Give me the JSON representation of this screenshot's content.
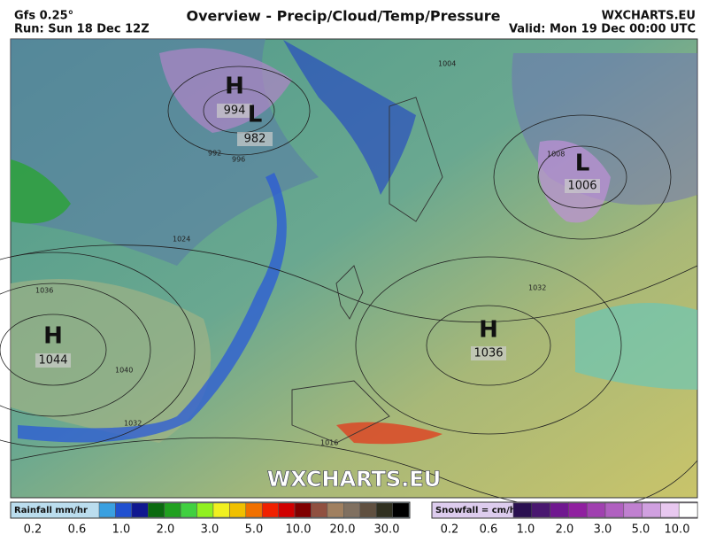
{
  "header": {
    "model": "Gfs 0.25°",
    "run": "Run: Sun 18 Dec 12Z",
    "title": "Overview - Precip/Cloud/Temp/Pressure",
    "site": "WXCHARTS.EU",
    "valid": "Valid: Mon 19 Dec 00:00 UTC"
  },
  "pressure_centers": [
    {
      "type": "H",
      "value": "994"
    },
    {
      "type": "L",
      "value": "982"
    },
    {
      "type": "L",
      "value": "1006"
    },
    {
      "type": "H",
      "value": "1044"
    },
    {
      "type": "H",
      "value": "1036"
    }
  ],
  "isobar_labels": [
    "1004",
    "1008",
    "992",
    "996",
    "1024",
    "1036",
    "1040",
    "1032",
    "1016",
    "1032"
  ],
  "watermark": "WXCHARTS.EU",
  "rain_legend": {
    "title": "Rainfall mm/hr",
    "labels": [
      "0.2",
      "0.6",
      "1.0",
      "2.0",
      "3.0",
      "5.0",
      "10.0",
      "20.0",
      "30.0"
    ],
    "colors": [
      "#3aa0e0",
      "#2050d0",
      "#101890",
      "#0a6a10",
      "#20a020",
      "#40d040",
      "#90f020",
      "#f0f020",
      "#f0c000",
      "#f07000",
      "#f02000",
      "#d00000",
      "#800000",
      "#905040",
      "#a08060",
      "#807060",
      "#605040",
      "#303020",
      "#000000"
    ]
  },
  "snow_legend": {
    "title": "Snowfall = cm/hr",
    "labels": [
      "0.2",
      "0.6",
      "1.0",
      "2.0",
      "3.0",
      "5.0",
      "10.0"
    ],
    "colors": [
      "#2a1050",
      "#4a1870",
      "#701890",
      "#9020a0",
      "#a040b0",
      "#b060c0",
      "#c080d0",
      "#d0a0e0",
      "#e8c8f0",
      "#ffffff"
    ]
  }
}
